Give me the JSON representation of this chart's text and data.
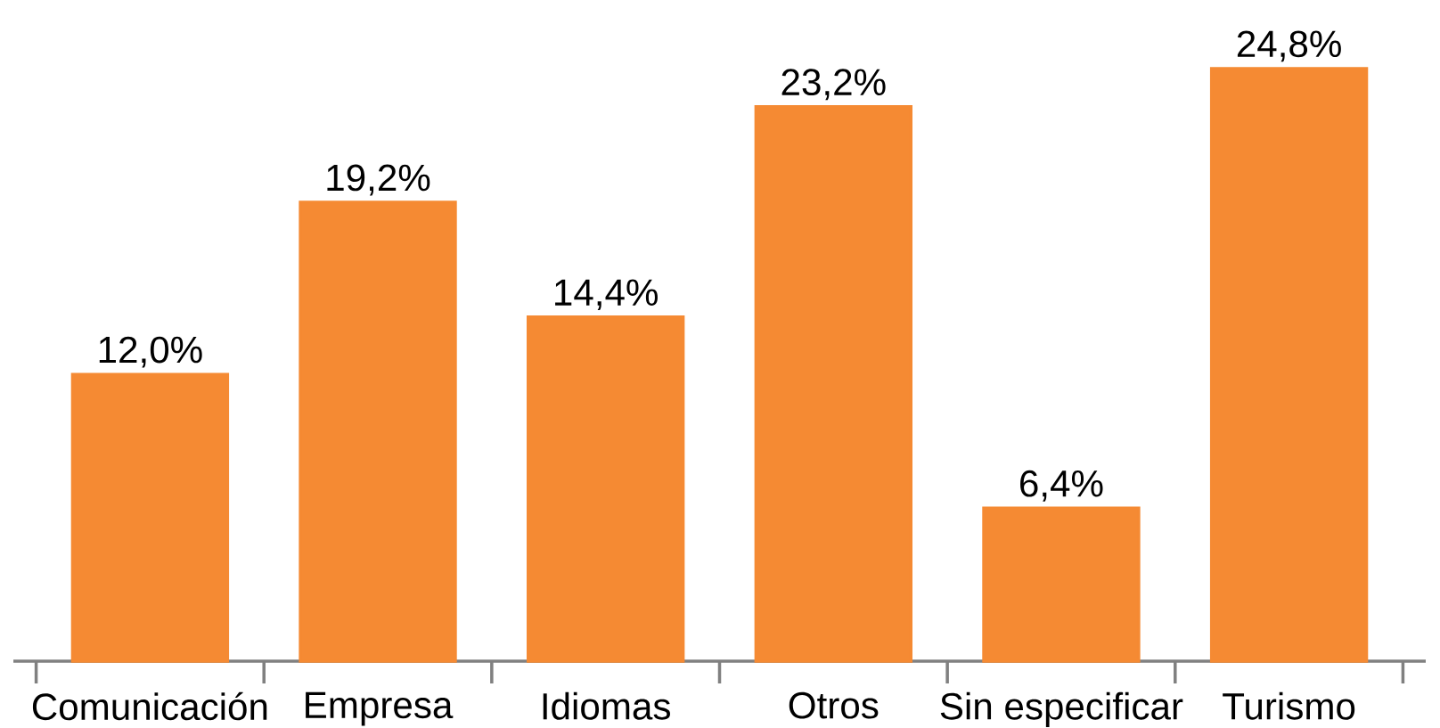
{
  "chart_data": {
    "type": "bar",
    "categories": [
      "Comunicación",
      "Empresa",
      "Idiomas",
      "Otros",
      "Sin especificar",
      "Turismo"
    ],
    "values": [
      12.0,
      19.2,
      14.4,
      23.2,
      6.4,
      24.8
    ],
    "value_labels": [
      "12,0%",
      "19,2%",
      "14,4%",
      "23,2%",
      "6,4%",
      "24,8%"
    ],
    "color": "#f58a33"
  }
}
